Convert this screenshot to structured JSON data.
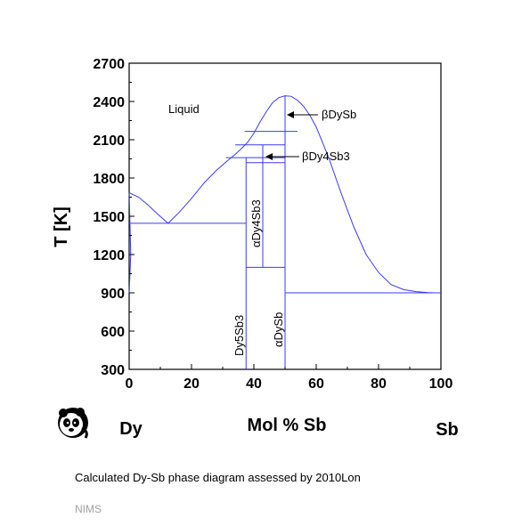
{
  "chart_data": {
    "type": "phase-diagram",
    "xlabel": "Mol % Sb",
    "ylabel": "T [K]",
    "xlim": [
      0,
      100
    ],
    "ylim": [
      300,
      2700
    ],
    "x_ticks": [
      0,
      20,
      40,
      60,
      80,
      100
    ],
    "y_ticks": [
      300,
      600,
      900,
      1200,
      1500,
      1800,
      2100,
      2400,
      2700
    ],
    "left_element": "Dy",
    "right_element": "Sb",
    "line_color": "#3a3aff",
    "liquidus": [
      [
        0,
        1685
      ],
      [
        3,
        1650
      ],
      [
        6,
        1590
      ],
      [
        9,
        1520
      ],
      [
        12.5,
        1445
      ],
      [
        16,
        1530
      ],
      [
        20,
        1640
      ],
      [
        24,
        1760
      ],
      [
        28,
        1860
      ],
      [
        32,
        1945
      ],
      [
        34,
        1985
      ],
      [
        36,
        2030
      ],
      [
        38,
        2080
      ],
      [
        40,
        2150
      ],
      [
        42,
        2240
      ],
      [
        44,
        2320
      ],
      [
        46,
        2390
      ],
      [
        48,
        2430
      ],
      [
        50,
        2445
      ],
      [
        52,
        2440
      ],
      [
        54,
        2410
      ],
      [
        56,
        2360
      ],
      [
        58,
        2290
      ],
      [
        60,
        2200
      ],
      [
        64,
        1960
      ],
      [
        68,
        1680
      ],
      [
        72,
        1420
      ],
      [
        76,
        1200
      ],
      [
        80,
        1060
      ],
      [
        84,
        965
      ],
      [
        88,
        925
      ],
      [
        92,
        910
      ],
      [
        96,
        902
      ],
      [
        98,
        900
      ]
    ],
    "dy_side_liquidus": [
      [
        0,
        1685
      ],
      [
        0.5,
        1200
      ],
      [
        0,
        900
      ]
    ],
    "horizontals": [
      {
        "x1": 0,
        "x2": 37.5,
        "T": 1445
      },
      {
        "x1": 37.5,
        "x2": 50,
        "T": 1100
      },
      {
        "x1": 50,
        "x2": 100,
        "T": 900
      },
      {
        "x1": 31,
        "x2": 50,
        "T": 1960
      },
      {
        "x1": 37.5,
        "x2": 50,
        "T": 1920
      },
      {
        "x1": 34,
        "x2": 50,
        "T": 2060
      },
      {
        "x1": 37,
        "x2": 54,
        "T": 2165
      }
    ],
    "verticals": [
      {
        "x": 37.5,
        "T1": 300,
        "T2": 1960
      },
      {
        "x": 42.86,
        "T1": 1100,
        "T2": 2060
      },
      {
        "x": 50,
        "T1": 300,
        "T2": 2445
      }
    ],
    "phase_labels": {
      "liquid": "Liquid",
      "beta_dysb": "βDySb",
      "beta_dy4sb3": "βDy4Sb3",
      "alpha_dy4sb3": "αDy4Sb3",
      "dy5sb3": "Dy5Sb3",
      "alpha_dysb": "αDySb"
    }
  },
  "caption": "Calculated Dy-Sb phase diagram assessed by 2010Lon",
  "credit": "NIMS",
  "logo": "panda-logo"
}
